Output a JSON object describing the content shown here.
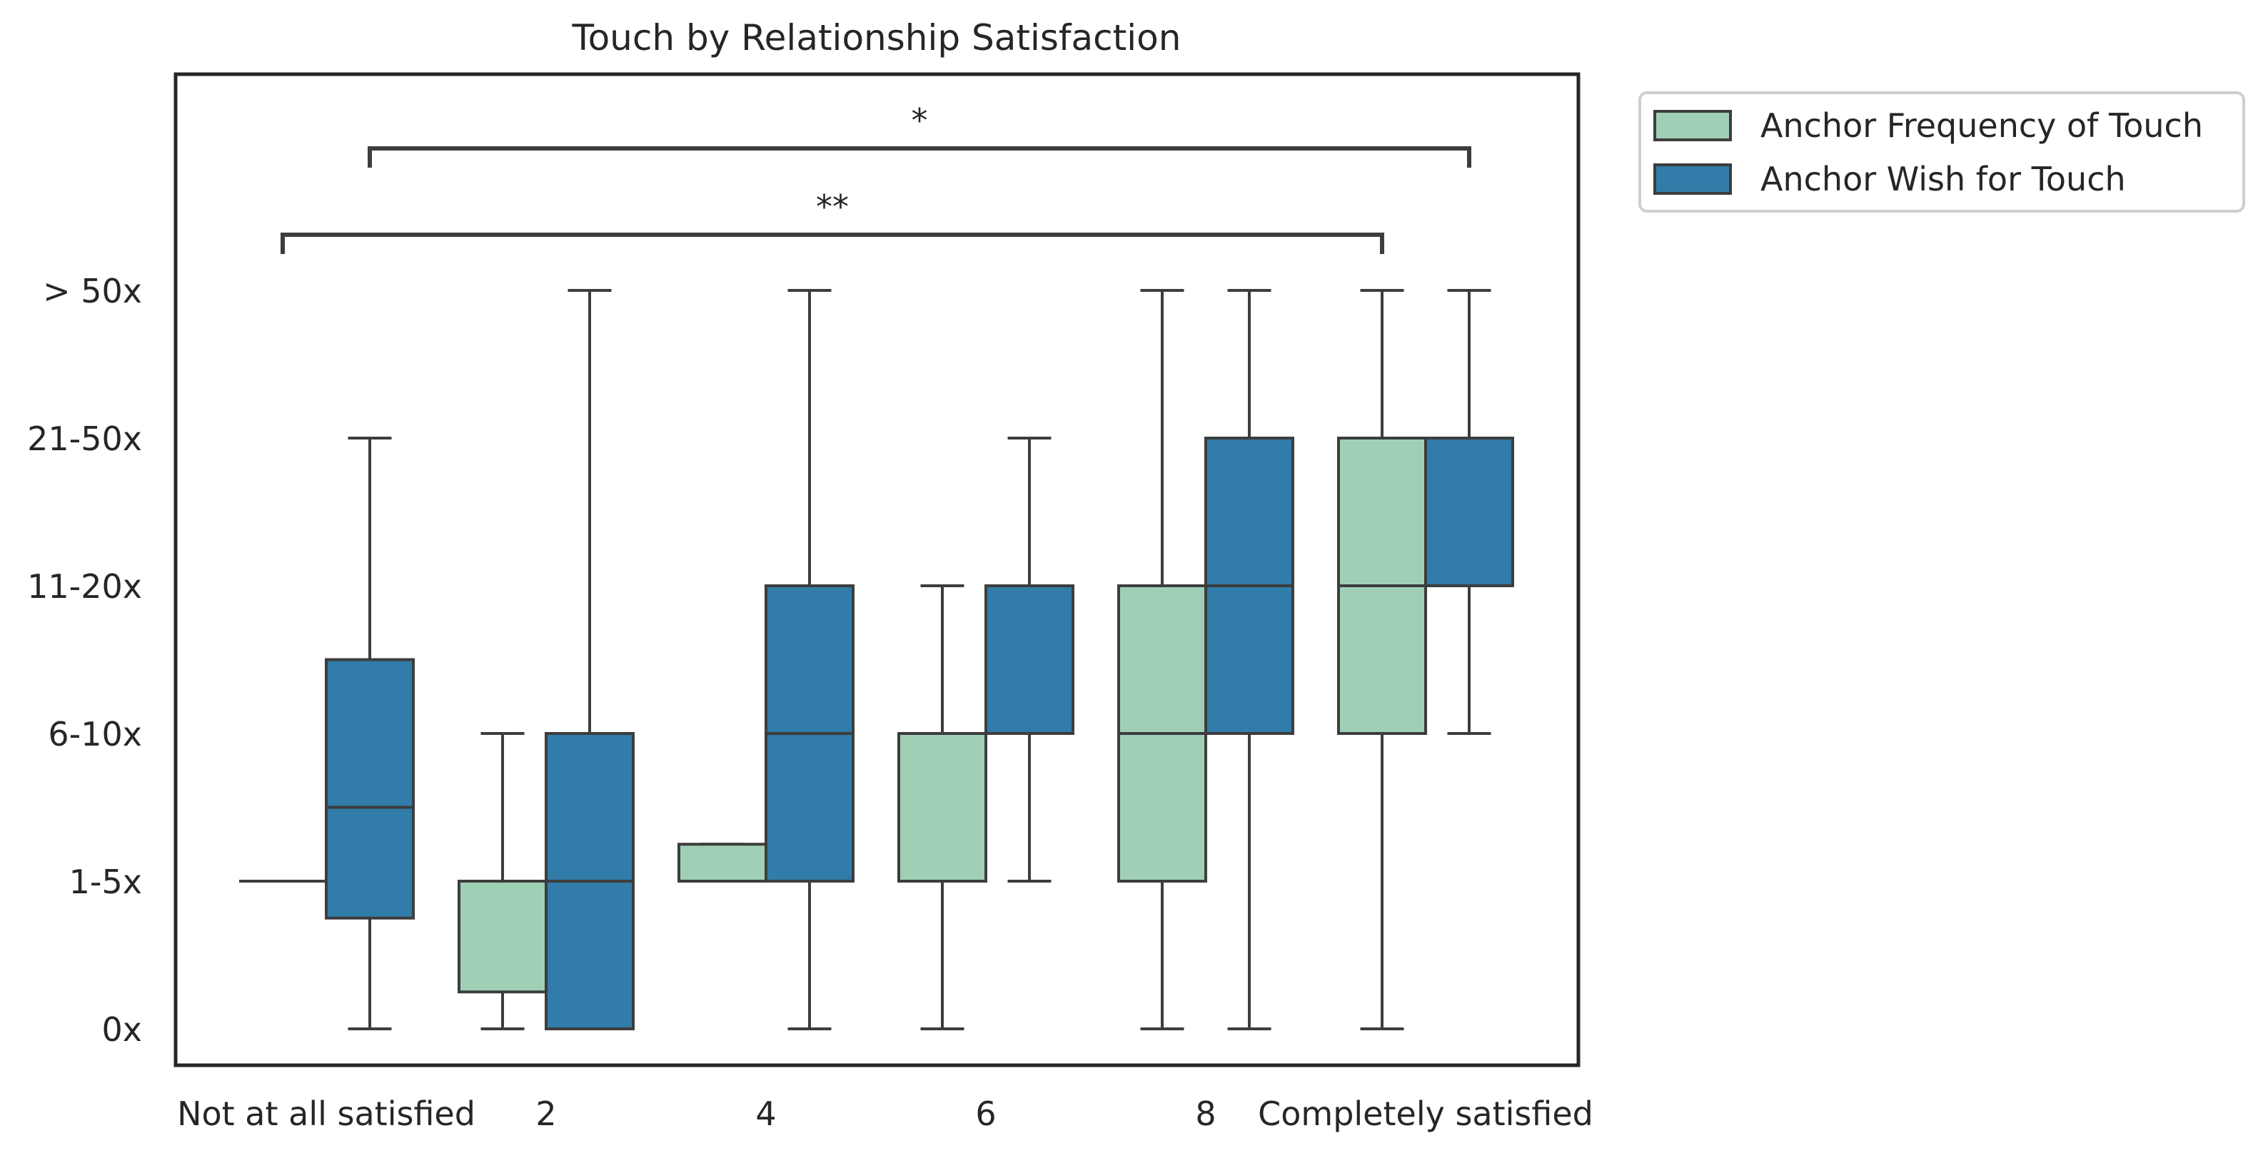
{
  "chart_data": {
    "type": "box",
    "title": "Touch by Relationship Satisfaction",
    "xlabel": "",
    "ylabel": "",
    "categories": [
      "Not at all satisfied",
      "2",
      "4",
      "6",
      "8",
      "Completely satisfied"
    ],
    "y_tick_labels": [
      "0x",
      "1-5x",
      "6-10x",
      "11-20x",
      "21-50x",
      "> 50x"
    ],
    "y_tick_values": [
      0,
      1,
      2,
      3,
      4,
      5
    ],
    "ylim": [
      -0.25,
      6.6
    ],
    "series": [
      {
        "name": "Anchor Frequency of Touch",
        "color": "#9fd0b6",
        "boxes": [
          {
            "category": "Not at all satisfied",
            "whisker_low": 1,
            "q1": 1,
            "median": 1,
            "q3": 1,
            "whisker_high": 1
          },
          {
            "category": "2",
            "whisker_low": 0,
            "q1": 0.25,
            "median": 1,
            "q3": 1,
            "whisker_high": 2
          },
          {
            "category": "4",
            "whisker_low": 1,
            "q1": 1,
            "median": 1,
            "q3": 1.25,
            "whisker_high": 1.25
          },
          {
            "category": "6",
            "whisker_low": 0,
            "q1": 1,
            "median": 2,
            "q3": 2,
            "whisker_high": 3
          },
          {
            "category": "8",
            "whisker_low": 0,
            "q1": 1,
            "median": 2,
            "q3": 3,
            "whisker_high": 5
          },
          {
            "category": "Completely satisfied",
            "whisker_low": 0,
            "q1": 2,
            "median": 3,
            "q3": 4,
            "whisker_high": 5
          }
        ]
      },
      {
        "name": "Anchor Wish for Touch",
        "color": "#317ca8",
        "boxes": [
          {
            "category": "Not at all satisfied",
            "whisker_low": 0,
            "q1": 0.75,
            "median": 1.5,
            "q3": 2.5,
            "whisker_high": 4
          },
          {
            "category": "2",
            "whisker_low": 0,
            "q1": 0,
            "median": 1,
            "q3": 2,
            "whisker_high": 5
          },
          {
            "category": "4",
            "whisker_low": 0,
            "q1": 1,
            "median": 2,
            "q3": 3,
            "whisker_high": 5
          },
          {
            "category": "6",
            "whisker_low": 1,
            "q1": 2,
            "median": 3,
            "q3": 3,
            "whisker_high": 4
          },
          {
            "category": "8",
            "whisker_low": 0,
            "q1": 2,
            "median": 3,
            "q3": 4,
            "whisker_high": 5
          },
          {
            "category": "Completely satisfied",
            "whisker_low": 2,
            "q1": 3,
            "median": 4,
            "q3": 4,
            "whisker_high": 5
          }
        ]
      }
    ],
    "annotations": [
      {
        "text": "*",
        "from_category": "Not at all satisfied",
        "from_series": "Anchor Wish for Touch",
        "to_category": "Completely satisfied",
        "to_series": "Anchor Wish for Touch"
      },
      {
        "text": "**",
        "from_category": "Not at all satisfied",
        "from_series": "Anchor Frequency of Touch",
        "to_category": "Completely satisfied",
        "to_series": "Anchor Frequency of Touch"
      }
    ],
    "legend_position": "outside-top-right",
    "grid": false
  }
}
